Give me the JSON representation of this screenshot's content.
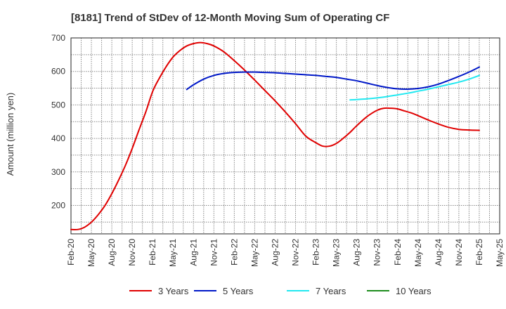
{
  "chart_data": {
    "type": "line",
    "title": "[8181]  Trend of StDev of 12-Month Moving Sum of Operating CF",
    "xlabel": "",
    "ylabel": "Amount (million yen)",
    "ylim": [
      115,
      700
    ],
    "yticks": [
      200,
      300,
      400,
      500,
      600,
      700
    ],
    "categories": [
      "Feb-20",
      "May-20",
      "Aug-20",
      "Nov-20",
      "Feb-21",
      "May-21",
      "Aug-21",
      "Nov-21",
      "Feb-22",
      "May-22",
      "Aug-22",
      "Nov-22",
      "Feb-23",
      "May-23",
      "Aug-23",
      "Nov-23",
      "Feb-24",
      "May-24",
      "Aug-24",
      "Nov-24",
      "Feb-25",
      "May-25"
    ],
    "grid": true,
    "legend_position": "bottom",
    "series": [
      {
        "name": "3 Years",
        "color": "#e00000",
        "x": [
          0,
          0.33,
          0.67,
          1,
          1.33,
          1.67,
          2,
          2.33,
          2.67,
          3,
          3.33,
          3.67,
          4,
          4.33,
          4.67,
          5,
          5.33,
          5.67,
          6,
          6.33,
          6.67,
          7,
          7.5,
          8,
          8.5,
          9,
          9.5,
          10,
          10.5,
          11,
          11.5,
          12,
          12.33,
          12.67,
          13,
          13.33,
          13.67,
          14,
          14.5,
          15,
          15.33,
          15.67,
          16,
          16.33,
          16.67,
          17,
          17.5,
          18,
          18.5,
          19,
          19.5,
          20
        ],
        "values": [
          128,
          128,
          135,
          150,
          172,
          200,
          235,
          275,
          320,
          370,
          425,
          480,
          540,
          580,
          615,
          643,
          662,
          676,
          683,
          686,
          683,
          676,
          658,
          632,
          604,
          574,
          543,
          512,
          479,
          444,
          407,
          387,
          377,
          377,
          385,
          400,
          418,
          438,
          465,
          484,
          490,
          490,
          488,
          482,
          476,
          468,
          455,
          443,
          433,
          427,
          425,
          424
        ]
      },
      {
        "name": "5 Years",
        "color": "#0018c8",
        "x": [
          5.67,
          6,
          6.5,
          7,
          7.5,
          8,
          8.5,
          9,
          9.5,
          10,
          10.5,
          11,
          11.5,
          12,
          12.5,
          13,
          13.5,
          14,
          14.5,
          15,
          15.5,
          16,
          16.5,
          17,
          17.5,
          18,
          18.5,
          19,
          19.5,
          20
        ],
        "values": [
          546,
          560,
          577,
          588,
          594,
          597,
          598,
          598,
          597,
          596,
          594,
          592,
          590,
          588,
          585,
          582,
          577,
          572,
          565,
          558,
          552,
          548,
          547,
          549,
          554,
          562,
          573,
          585,
          598,
          613
        ]
      },
      {
        "name": "7 Years",
        "color": "#22e8f0",
        "x": [
          13.67,
          14,
          14.5,
          15,
          15.5,
          16,
          16.5,
          17,
          17.5,
          18,
          18.5,
          19,
          19.5,
          20
        ],
        "values": [
          515,
          516,
          518,
          521,
          525,
          530,
          535,
          541,
          547,
          554,
          561,
          568,
          577,
          588
        ]
      },
      {
        "name": "10 Years",
        "color": "#1e8c1e",
        "x": [],
        "values": []
      }
    ]
  }
}
